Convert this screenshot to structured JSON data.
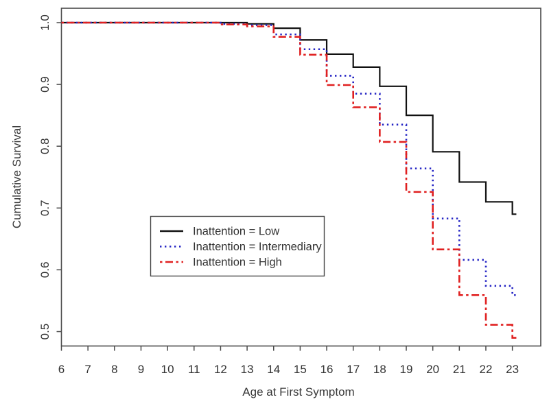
{
  "figure": {
    "background": "#ffffff",
    "axis_color": "#4a4a4a",
    "text_color": "#383838"
  },
  "chart_data": {
    "type": "line",
    "subtype": "kaplan-meier-step",
    "title": "",
    "xlabel": "Age at First Symptom",
    "ylabel": "Cumulative Survival",
    "grid": false,
    "xlim": [
      6,
      24.07
    ],
    "ylim": [
      0.4767,
      1.0233
    ],
    "x_ticks": [
      6,
      7,
      8,
      9,
      10,
      11,
      12,
      13,
      14,
      15,
      16,
      17,
      18,
      19,
      20,
      21,
      22,
      23
    ],
    "y_ticks": [
      0.5,
      0.6,
      0.7,
      0.8,
      0.9,
      1.0
    ],
    "y_tick_labels": [
      "0.5",
      "0.6",
      "0.7",
      "0.8",
      "0.9",
      "1.0"
    ],
    "x": [
      6,
      7,
      8,
      9,
      10,
      11,
      12,
      13,
      14,
      15,
      16,
      17,
      18,
      19,
      20,
      21,
      22,
      23
    ],
    "x_end": 23.15,
    "series": [
      {
        "key": "low",
        "name": "Inattention = Low",
        "color": "#111111",
        "style": "solid",
        "values": [
          1.0,
          1.0,
          1.0,
          1.0,
          1.0,
          1.0,
          1.0,
          0.998,
          0.991,
          0.972,
          0.949,
          0.928,
          0.897,
          0.85,
          0.791,
          0.742,
          0.71,
          0.69
        ]
      },
      {
        "key": "intermediary",
        "name": "Inattention = Intermediary",
        "color": "#2424c4",
        "style": "dotted",
        "values": [
          1.0,
          1.0,
          1.0,
          1.0,
          1.0,
          1.0,
          0.998,
          0.996,
          0.981,
          0.957,
          0.914,
          0.885,
          0.835,
          0.764,
          0.683,
          0.616,
          0.574,
          0.559
        ]
      },
      {
        "key": "high",
        "name": "Inattention = High",
        "color": "#e02020",
        "style": "dashdot",
        "values": [
          1.0,
          1.0,
          1.0,
          1.0,
          1.0,
          1.0,
          0.997,
          0.994,
          0.977,
          0.948,
          0.899,
          0.863,
          0.807,
          0.726,
          0.633,
          0.559,
          0.511,
          0.49
        ]
      }
    ],
    "legend": {
      "position": "inside-left-middle",
      "border": true
    }
  }
}
